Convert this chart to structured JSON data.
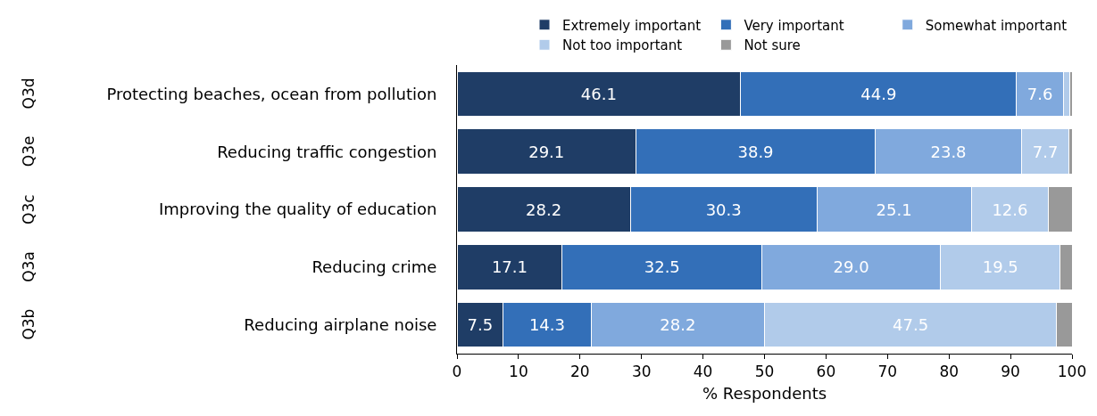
{
  "chart_data": {
    "type": "bar",
    "orientation": "horizontal",
    "stacked": true,
    "categories": [
      "Protecting beaches, ocean from pollution",
      "Reducing traffic congestion",
      "Improving the quality of education",
      "Reducing crime",
      "Reducing airplane noise"
    ],
    "series": [
      {
        "name": "Extremely important",
        "color": "#1f3d66",
        "values": [
          46.1,
          29.1,
          28.2,
          17.1,
          7.5
        ],
        "value_labels": [
          "46.1",
          "29.1",
          "28.2",
          "17.1",
          "7.5"
        ]
      },
      {
        "name": "Very important",
        "color": "#336fb8",
        "values": [
          44.9,
          38.9,
          30.3,
          32.5,
          14.3
        ],
        "value_labels": [
          "44.9",
          "38.9",
          "30.3",
          "32.5",
          "14.3"
        ]
      },
      {
        "name": "Somewhat important",
        "color": "#80a9dd",
        "values": [
          7.6,
          23.8,
          25.1,
          29.0,
          28.2
        ],
        "value_labels": [
          "7.6",
          "23.8",
          "25.1",
          "29.0",
          "28.2"
        ]
      },
      {
        "name": "Not too important",
        "color": "#b1cbea",
        "values": [
          1.0,
          7.7,
          12.6,
          19.5,
          47.5
        ],
        "value_labels": [
          null,
          "7.7",
          "12.6",
          "19.5",
          "47.5"
        ]
      },
      {
        "name": "Not sure",
        "color": "#999999",
        "values": [
          0.4,
          0.5,
          3.8,
          1.9,
          2.5
        ],
        "value_labels": [
          null,
          null,
          null,
          null,
          null
        ]
      }
    ],
    "annotations": [
      "Q3d",
      "Q3e",
      "Q3c",
      "Q3a",
      "Q3b"
    ],
    "xlabel": "% Respondents",
    "xlim": [
      0,
      100
    ],
    "xticks": [
      0,
      10,
      20,
      30,
      40,
      50,
      60,
      70,
      80,
      90,
      100
    ],
    "grid": false,
    "legend": "top right"
  }
}
